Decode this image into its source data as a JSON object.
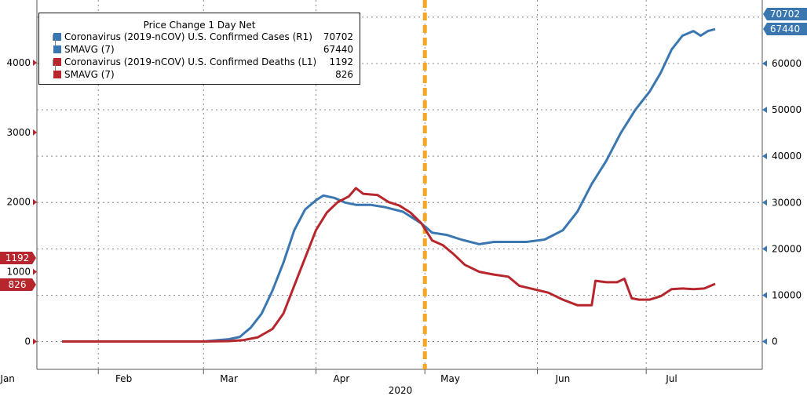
{
  "chart_data": {
    "type": "line",
    "legend_title": "Price Change 1 Day Net",
    "x_tick_labels": [
      "Jan",
      "Feb",
      "Mar",
      "Apr",
      "May",
      "Jun",
      "Jul"
    ],
    "x_year_label": "2020",
    "left_axis": {
      "ylim": [
        -400,
        4900
      ],
      "ticks": [
        "0",
        "1000",
        "2000",
        "3000",
        "4000"
      ]
    },
    "right_axis": {
      "ylim": [
        -6000,
        73700
      ],
      "ticks": [
        "0",
        "10000",
        "20000",
        "30000",
        "40000",
        "50000",
        "60000"
      ]
    },
    "vertical_marker": {
      "date": "2020-05-01",
      "color": "#f5a623",
      "style": "dashed"
    },
    "series": [
      {
        "name": "Coronavirus (2019-nCOV) U.S. Confirmed Cases (R1)",
        "axis": "right",
        "color": "#3a77b1",
        "last_value": "70702",
        "points": [
          [
            "2020-01-22",
            0
          ],
          [
            "2020-02-15",
            0
          ],
          [
            "2020-03-01",
            10
          ],
          [
            "2020-03-05",
            300
          ],
          [
            "2020-03-08",
            500
          ],
          [
            "2020-03-11",
            1000
          ],
          [
            "2020-03-14",
            3000
          ],
          [
            "2020-03-17",
            6000
          ],
          [
            "2020-03-20",
            11000
          ],
          [
            "2020-03-23",
            17000
          ],
          [
            "2020-03-26",
            24000
          ],
          [
            "2020-03-29",
            28500
          ],
          [
            "2020-04-01",
            30500
          ],
          [
            "2020-04-03",
            31500
          ],
          [
            "2020-04-06",
            31000
          ],
          [
            "2020-04-09",
            30000
          ],
          [
            "2020-04-12",
            29500
          ],
          [
            "2020-04-16",
            29500
          ],
          [
            "2020-04-20",
            29000
          ],
          [
            "2020-04-25",
            28000
          ],
          [
            "2020-04-30",
            25500
          ],
          [
            "2020-05-03",
            23500
          ],
          [
            "2020-05-07",
            23000
          ],
          [
            "2020-05-11",
            22000
          ],
          [
            "2020-05-16",
            21000
          ],
          [
            "2020-05-20",
            21500
          ],
          [
            "2020-05-25",
            21500
          ],
          [
            "2020-05-29",
            21500
          ],
          [
            "2020-06-03",
            22000
          ],
          [
            "2020-06-08",
            24000
          ],
          [
            "2020-06-12",
            28000
          ],
          [
            "2020-06-16",
            34000
          ],
          [
            "2020-06-20",
            39000
          ],
          [
            "2020-06-24",
            45000
          ],
          [
            "2020-06-28",
            50000
          ],
          [
            "2020-07-02",
            54000
          ],
          [
            "2020-07-05",
            58000
          ],
          [
            "2020-07-08",
            63000
          ],
          [
            "2020-07-11",
            66000
          ],
          [
            "2020-07-14",
            67000
          ],
          [
            "2020-07-16",
            66000
          ],
          [
            "2020-07-18",
            67000
          ],
          [
            "2020-07-20",
            67400
          ]
        ]
      },
      {
        "name": "SMAVG (7)",
        "axis": "right",
        "color": "#3a77b1",
        "last_value": "67440",
        "visible": false
      },
      {
        "name": "Coronavirus (2019-nCOV) U.S. Confirmed Deaths (L1)",
        "axis": "left",
        "color": "#b7262d",
        "last_value": "1192",
        "points": [
          [
            "2020-01-22",
            0
          ],
          [
            "2020-02-15",
            0
          ],
          [
            "2020-03-01",
            0
          ],
          [
            "2020-03-08",
            5
          ],
          [
            "2020-03-12",
            20
          ],
          [
            "2020-03-16",
            60
          ],
          [
            "2020-03-20",
            180
          ],
          [
            "2020-03-23",
            400
          ],
          [
            "2020-03-26",
            800
          ],
          [
            "2020-03-29",
            1200
          ],
          [
            "2020-04-01",
            1600
          ],
          [
            "2020-04-04",
            1850
          ],
          [
            "2020-04-07",
            2000
          ],
          [
            "2020-04-10",
            2080
          ],
          [
            "2020-04-12",
            2200
          ],
          [
            "2020-04-14",
            2120
          ],
          [
            "2020-04-18",
            2100
          ],
          [
            "2020-04-21",
            2000
          ],
          [
            "2020-04-24",
            1950
          ],
          [
            "2020-04-27",
            1850
          ],
          [
            "2020-04-30",
            1700
          ],
          [
            "2020-05-03",
            1450
          ],
          [
            "2020-05-06",
            1380
          ],
          [
            "2020-05-09",
            1250
          ],
          [
            "2020-05-12",
            1100
          ],
          [
            "2020-05-16",
            1000
          ],
          [
            "2020-05-20",
            960
          ],
          [
            "2020-05-24",
            930
          ],
          [
            "2020-05-27",
            800
          ],
          [
            "2020-05-31",
            750
          ],
          [
            "2020-06-04",
            700
          ],
          [
            "2020-06-08",
            600
          ],
          [
            "2020-06-12",
            520
          ],
          [
            "2020-06-16",
            520
          ],
          [
            "2020-06-17",
            870
          ],
          [
            "2020-06-20",
            850
          ],
          [
            "2020-06-23",
            850
          ],
          [
            "2020-06-25",
            900
          ],
          [
            "2020-06-27",
            620
          ],
          [
            "2020-06-29",
            600
          ],
          [
            "2020-07-02",
            600
          ],
          [
            "2020-07-05",
            650
          ],
          [
            "2020-07-08",
            750
          ],
          [
            "2020-07-11",
            760
          ],
          [
            "2020-07-14",
            750
          ],
          [
            "2020-07-17",
            760
          ],
          [
            "2020-07-20",
            826
          ]
        ]
      },
      {
        "name": "SMAVG (7)",
        "axis": "left",
        "color": "#b7262d",
        "last_value": "826",
        "visible": false
      }
    ],
    "value_tags": [
      {
        "axis": "right",
        "text": "70702",
        "value": 70702,
        "color": "#3a77b1"
      },
      {
        "axis": "right",
        "text": "67440",
        "value": 67440,
        "color": "#3a77b1"
      },
      {
        "axis": "left",
        "text": "1192",
        "value": 1192,
        "color": "#b7262d"
      },
      {
        "axis": "left",
        "text": "826",
        "value": 826,
        "color": "#b7262d"
      }
    ]
  }
}
